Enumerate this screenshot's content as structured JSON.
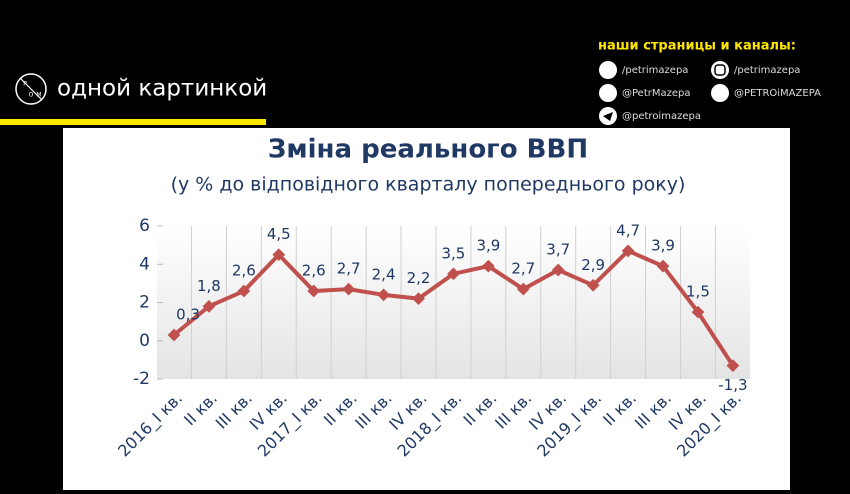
{
  "header": {
    "logo_letters": [
      "P",
      "O",
      "M"
    ],
    "title": "одной картинкой"
  },
  "social": {
    "heading": "наши страницы и каналы:",
    "links": [
      "/petrimazepa",
      "/petrimazepa",
      "@PetrMazepa",
      "@PETROiMAZEPA",
      "@petroimazepa"
    ]
  },
  "chart_data": {
    "type": "line",
    "title": "Зміна реального ВВП",
    "subtitle": "(у % до відповідного кварталу попереднього року)",
    "categories": [
      "2016_I кв.",
      "II кв.",
      "III кв.",
      "IV кв.",
      "2017_I кв.",
      "II кв.",
      "III кв.",
      "IV кв.",
      "2018_I кв.",
      "II кв.",
      "III кв.",
      "IV кв.",
      "2019_I кв.",
      "II кв.",
      "III кв.",
      "IV кв.",
      "2020_I кв."
    ],
    "values": [
      0.3,
      1.8,
      2.6,
      4.5,
      2.6,
      2.7,
      2.4,
      2.2,
      3.5,
      3.9,
      2.7,
      3.7,
      2.9,
      4.7,
      3.9,
      1.5,
      -1.3
    ],
    "value_labels": [
      "0,3",
      "1,8",
      "2,6",
      "4,5",
      "2,6",
      "2,7",
      "2,4",
      "2,2",
      "3,5",
      "3,9",
      "2,7",
      "3,7",
      "2,9",
      "4,7",
      "3,9",
      "1,5",
      "-1,3"
    ],
    "color": "#c0504d",
    "ylim": [
      -2,
      6
    ],
    "yticks": [
      -2,
      0,
      2,
      4,
      6
    ],
    "grid": true
  }
}
